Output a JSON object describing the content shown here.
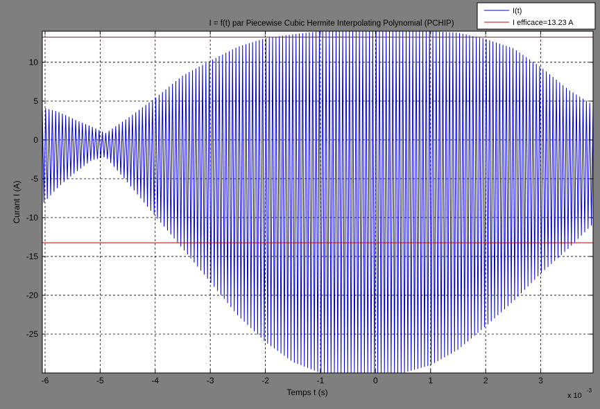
{
  "chart_data": {
    "type": "line",
    "title": "I = f(t) par Piecewise Cubic Hermite Interpolating Polynomial (PCHIP)",
    "xlabel": "Temps t (s)",
    "ylabel": "Curant I (A)",
    "x_multiplier": "x 10",
    "x_multiplier_exponent": "-3",
    "xlim": [
      -6.05,
      3.95
    ],
    "ylim": [
      -30,
      14
    ],
    "x_ticks": [
      -6,
      -5,
      -4,
      -3,
      -2,
      -1,
      0,
      1,
      2,
      3
    ],
    "x_tick_labels": [
      "-6",
      "-5",
      "-4",
      "-3",
      "-2",
      "-1",
      "0",
      "1",
      "2",
      "3"
    ],
    "y_ticks": [
      -25,
      -20,
      -15,
      -10,
      -5,
      0,
      5,
      10
    ],
    "y_tick_labels": [
      "-25",
      "-20",
      "-15",
      "-10",
      "-5",
      "0",
      "5",
      "10"
    ],
    "grid": true,
    "legend_position": "top-right",
    "series": [
      {
        "name": "I(t)",
        "color": "#0000cc",
        "kind": "oscillation",
        "cycles_per_ms": 16.5,
        "envelope_t_ms": [
          -6.05,
          -5.75,
          -5.45,
          -5.15,
          -4.9,
          -4.5,
          -4.0,
          -3.5,
          -3.0,
          -2.5,
          -2.0,
          -1.5,
          -1.0,
          -0.5,
          0.0,
          0.5,
          1.0,
          1.5,
          2.0,
          2.5,
          3.0,
          3.5,
          3.95
        ],
        "envelope_upper": [
          4.2,
          3.6,
          2.6,
          1.7,
          0.9,
          2.8,
          5.4,
          8.3,
          10.2,
          12.0,
          13.1,
          13.6,
          14.0,
          14.0,
          14.0,
          14.0,
          14.0,
          13.8,
          13.0,
          11.8,
          9.4,
          6.5,
          4.5
        ],
        "envelope_lower": [
          -8.3,
          -6.0,
          -4.2,
          -2.6,
          -2.2,
          -5.5,
          -9.8,
          -14.0,
          -18.3,
          -22.6,
          -26.0,
          -28.6,
          -30.0,
          -30.0,
          -30.0,
          -30.0,
          -29.0,
          -27.0,
          -24.0,
          -20.8,
          -17.2,
          -14.0,
          -10.8
        ]
      },
      {
        "name": "I efficace=13.23 A",
        "color": "#cc0000",
        "kind": "horizontal",
        "y_values": [
          13.23,
          -13.23
        ]
      }
    ]
  }
}
